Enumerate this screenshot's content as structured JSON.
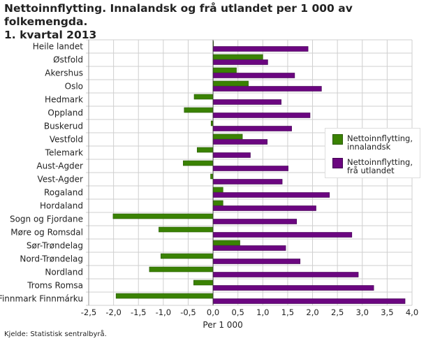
{
  "title_line1": "Nettoinnflytting. Innalandsk og frå utlandet per 1 000 av folkemengda.",
  "title_line2": "1. kvartal 2013",
  "source": "Kjelde: Statistisk sentralbyrå.",
  "colors": {
    "innalandsk": "#3a8203",
    "utlandet": "#6b0680"
  },
  "chart_data": {
    "type": "bar",
    "orientation": "horizontal",
    "categories": [
      "Heile landet",
      "Østfold",
      "Akershus",
      "Oslo",
      "Hedmark",
      "Oppland",
      "Buskerud",
      "Vestfold",
      "Telemark",
      "Aust-Agder",
      "Vest-Agder",
      "Rogaland",
      "Hordaland",
      "Sogn og Fjordane",
      "Møre og Romsdal",
      "Sør-Trøndelag",
      "Nord-Trøndelag",
      "Nordland",
      "Troms Romsa",
      "Finnmark Finnmárku"
    ],
    "series": [
      {
        "name": "Nettoinnflytting, innalandsk",
        "values": [
          0.0,
          1.0,
          0.47,
          0.71,
          -0.38,
          -0.58,
          -0.04,
          0.59,
          -0.32,
          -0.6,
          -0.05,
          0.2,
          0.2,
          -2.01,
          -1.09,
          0.54,
          -1.05,
          -1.28,
          -0.39,
          -1.95
        ]
      },
      {
        "name": "Nettoinnflytting, frå utlandet",
        "values": [
          1.91,
          1.1,
          1.64,
          2.18,
          1.37,
          1.95,
          1.58,
          1.09,
          0.75,
          1.51,
          1.39,
          2.34,
          2.07,
          1.68,
          2.79,
          1.46,
          1.75,
          2.92,
          3.23,
          3.86
        ]
      }
    ],
    "xlabel": "Per 1 000",
    "xlim": [
      -2.5,
      4.0
    ],
    "xticks": [
      "-2,5",
      "-2,0",
      "-1,5",
      "-1,0",
      "-0,5",
      "0,0",
      "0,5",
      "1,0",
      "1,5",
      "2,0",
      "2,5",
      "3,0",
      "3,5",
      "4,0"
    ],
    "grid": true,
    "legend_position": "right"
  }
}
